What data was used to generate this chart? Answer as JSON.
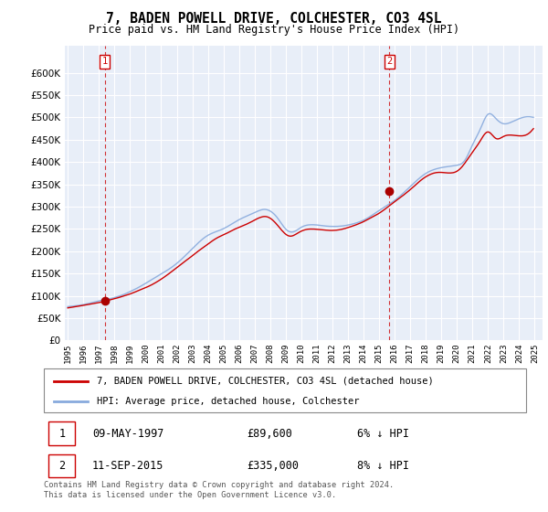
{
  "title": "7, BADEN POWELL DRIVE, COLCHESTER, CO3 4SL",
  "subtitle": "Price paid vs. HM Land Registry's House Price Index (HPI)",
  "legend_label1": "7, BADEN POWELL DRIVE, COLCHESTER, CO3 4SL (detached house)",
  "legend_label2": "HPI: Average price, detached house, Colchester",
  "sale1_date": "09-MAY-1997",
  "sale1_price": "£89,600",
  "sale1_hpi": "6% ↓ HPI",
  "sale2_date": "11-SEP-2015",
  "sale2_price": "£335,000",
  "sale2_hpi": "8% ↓ HPI",
  "footnote": "Contains HM Land Registry data © Crown copyright and database right 2024.\nThis data is licensed under the Open Government Licence v3.0.",
  "line_color_property": "#cc0000",
  "line_color_hpi": "#88aadd",
  "marker_color": "#aa0000",
  "vline_color": "#cc0000",
  "chart_bg": "#e8eef8",
  "ylim": [
    0,
    650000
  ],
  "yticks": [
    0,
    50000,
    100000,
    150000,
    200000,
    250000,
    300000,
    350000,
    400000,
    450000,
    500000,
    550000,
    600000
  ],
  "sale1_x": 1997.37,
  "sale1_y": 89600,
  "sale2_x": 2015.67,
  "sale2_y": 335000,
  "xmin": 1994.8,
  "xmax": 2025.5
}
